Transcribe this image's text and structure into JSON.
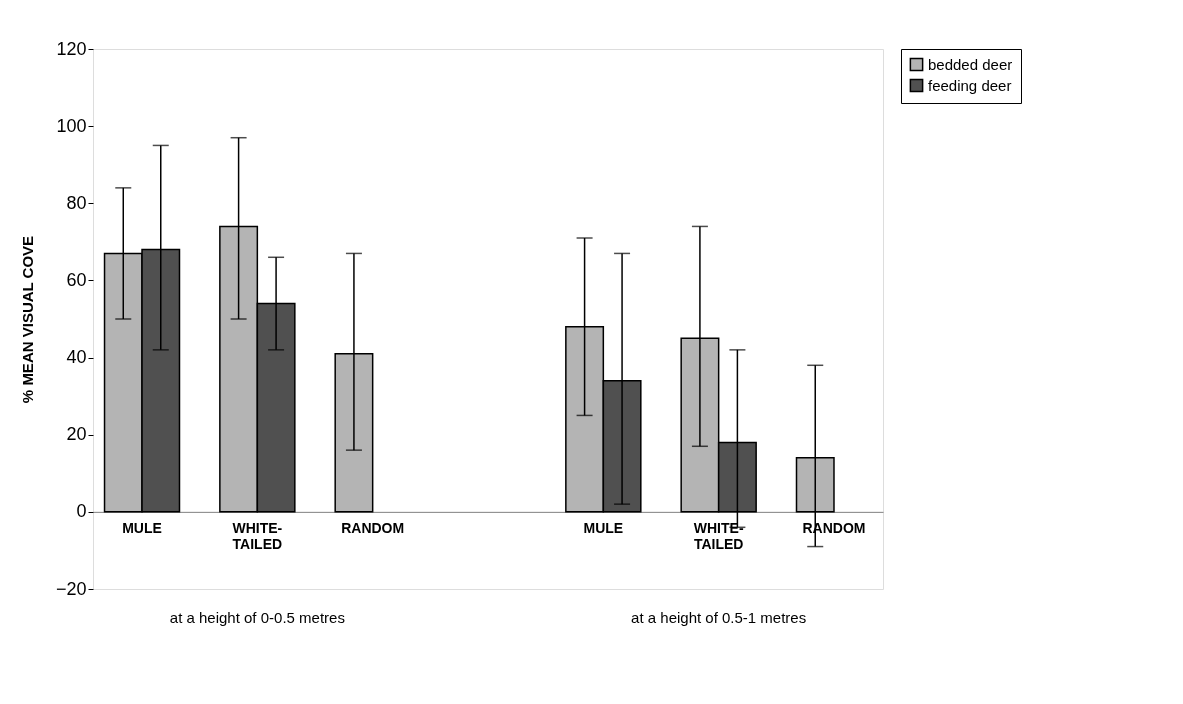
{
  "chart_data": {
    "type": "bar",
    "ylabel": "% MEAN VISUAL COVE",
    "categories": [
      "MULE",
      "WHITE-TAILED",
      "RANDOM",
      null,
      "MULE",
      "WHITE-TAILED",
      "RANDOM"
    ],
    "series": [
      {
        "name": "bedded deer",
        "color": "#b4b4b4",
        "values": [
          67,
          74,
          41,
          null,
          48,
          45,
          14
        ],
        "errors": [
          [
            50,
            84
          ],
          [
            50,
            97
          ],
          [
            16,
            67
          ],
          null,
          [
            25,
            71
          ],
          [
            17,
            74
          ],
          [
            -9,
            38
          ]
        ]
      },
      {
        "name": "feeding deer",
        "color": "#505050",
        "values": [
          68,
          54,
          null,
          null,
          34,
          18,
          null
        ],
        "errors": [
          [
            42,
            95
          ],
          [
            42,
            66
          ],
          null,
          null,
          [
            2,
            67
          ],
          [
            -4,
            42
          ],
          null
        ]
      }
    ],
    "ylim": [
      -20,
      120
    ],
    "yticks": [
      -20,
      0,
      20,
      40,
      60,
      80,
      100,
      120
    ],
    "grid": false,
    "legend": "right",
    "annotations": [
      "at a height of 0-0.5 metres",
      "at a height of 0.5-1 metres"
    ]
  }
}
